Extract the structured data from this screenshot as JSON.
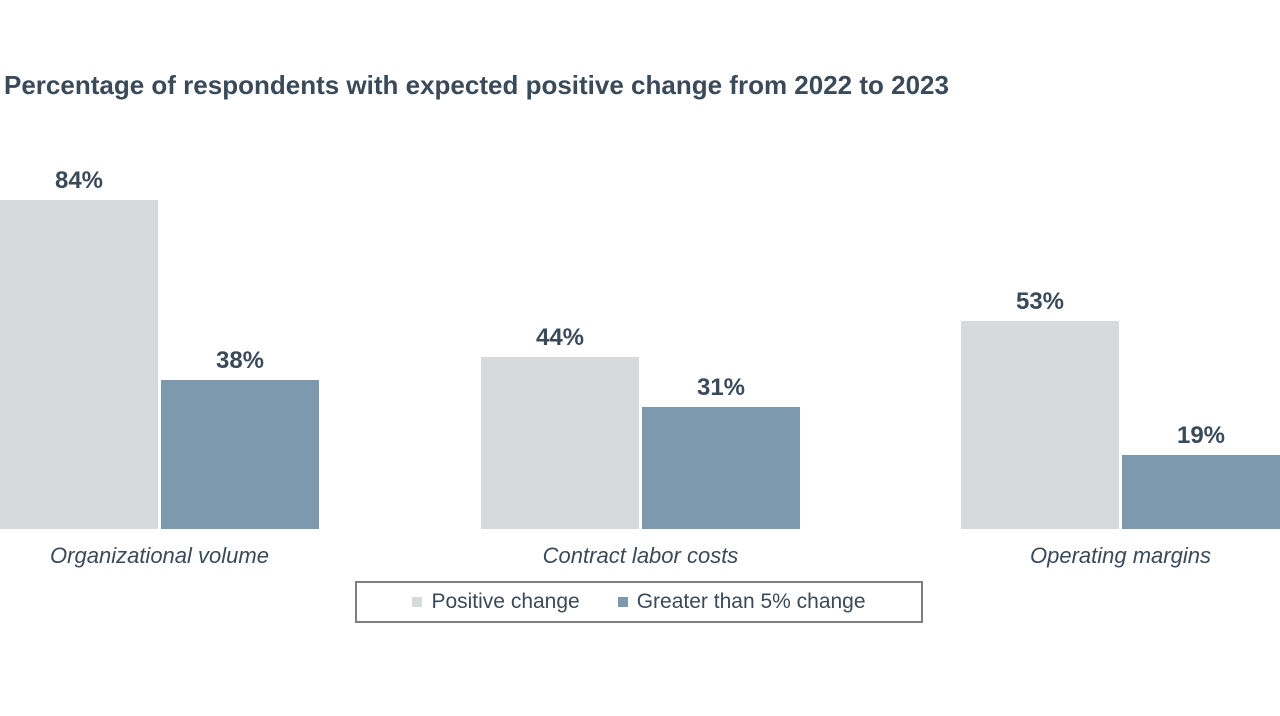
{
  "title": "Percentage of respondents with expected positive change from 2022 to 2023",
  "chart_data": {
    "type": "bar",
    "categories": [
      "Organizational volume",
      "Contract labor costs",
      "Operating margins"
    ],
    "series": [
      {
        "name": "Positive change",
        "values": [
          84,
          44,
          53
        ],
        "labels": [
          "84%",
          "44%",
          "53%"
        ],
        "color": "#d6dadb"
      },
      {
        "name": "Greater than 5% change",
        "values": [
          38,
          31,
          19
        ],
        "labels": [
          "38%",
          "31%",
          "19%"
        ],
        "color": "#7d99ad"
      }
    ],
    "title": "Percentage of respondents with expected positive change from 2022 to 2023",
    "xlabel": "",
    "ylabel": "",
    "ylim": [
      0,
      100
    ],
    "value_format": "percent",
    "grid": false,
    "axes_visible": false,
    "data_labels_position": "above-bar",
    "legend_position": "bottom-center"
  },
  "legend": {
    "items": [
      {
        "label": "Positive change",
        "color": "#d6dadb"
      },
      {
        "label": "Greater than 5% change",
        "color": "#7d99ad"
      }
    ]
  },
  "colors": {
    "text": "#3a4a59",
    "background": "#ffffff",
    "legend_border": "#7f7f7f"
  }
}
